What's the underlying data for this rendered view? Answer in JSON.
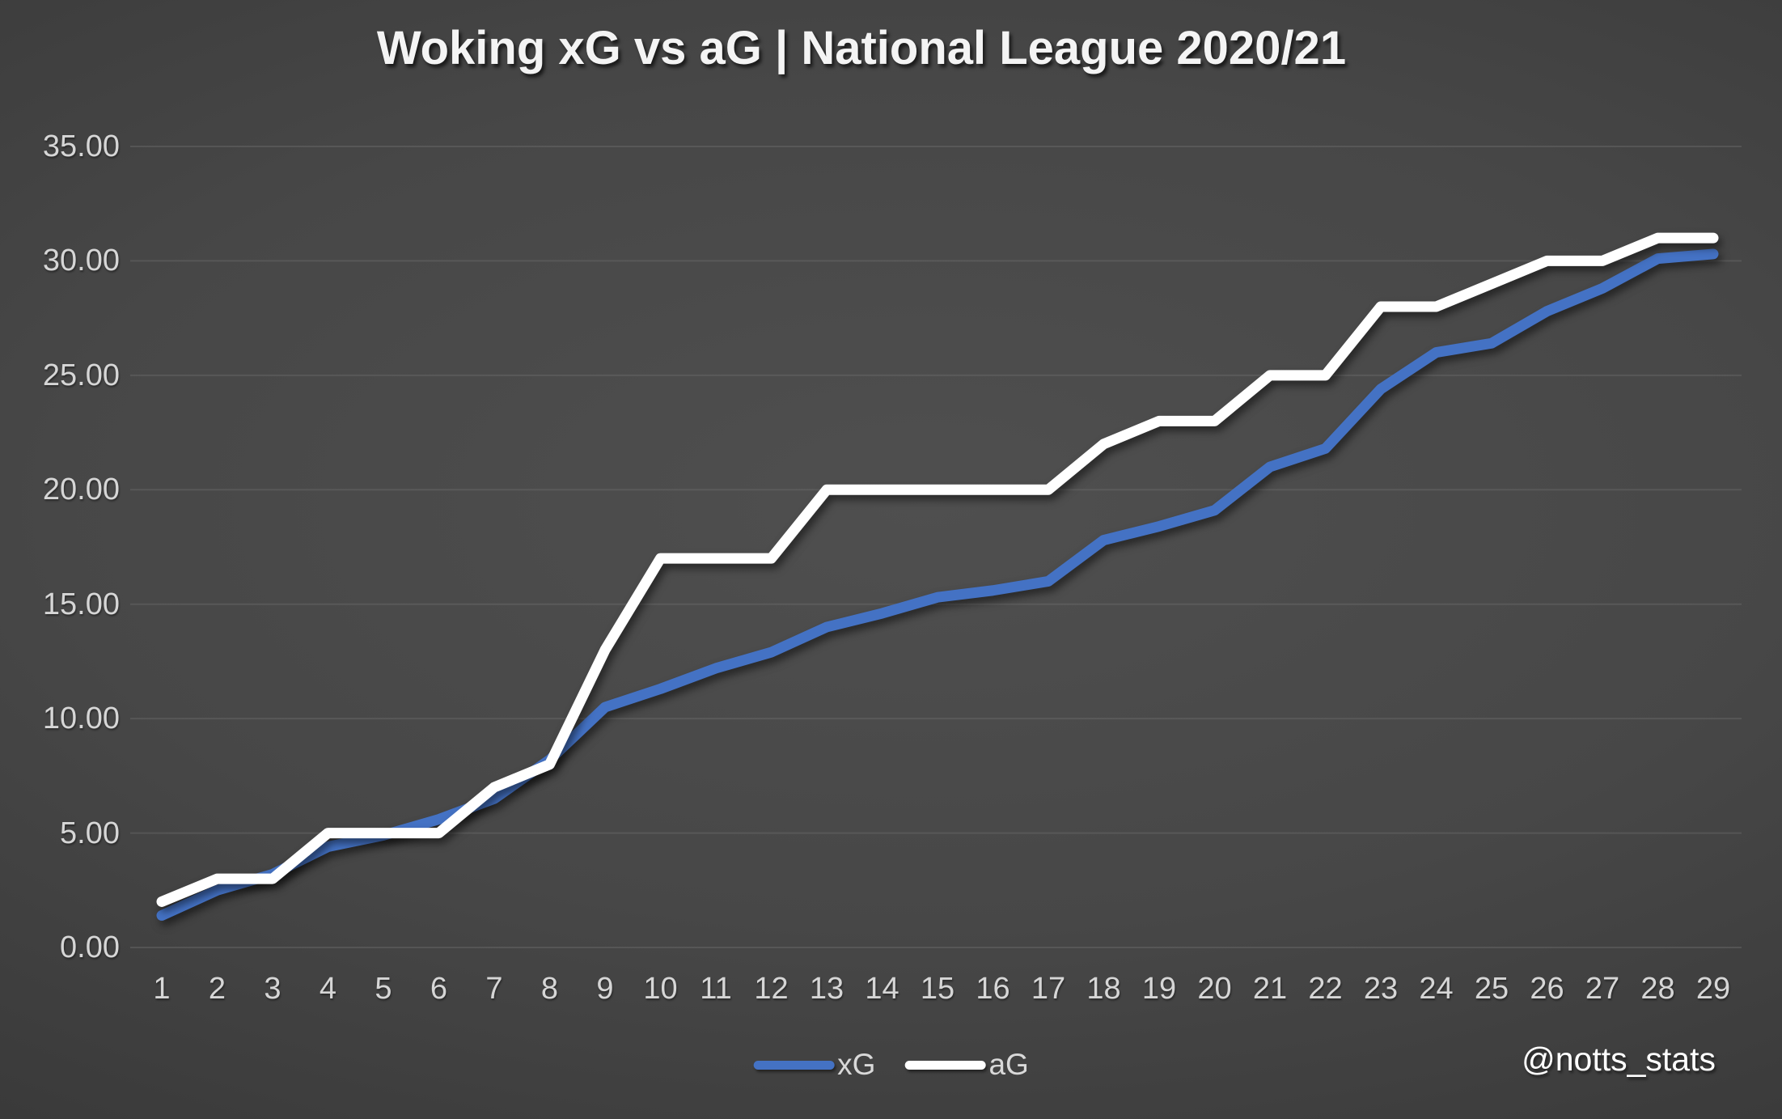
{
  "title": "Woking xG vs aG | National League 2020/21",
  "watermark": "@notts_stats",
  "colors": {
    "background_center": "#4d4d4d",
    "background_edge": "#262626",
    "gridline": "#707070",
    "axis_text": "#d6d6d6",
    "xg_blue": "#4472C4",
    "ag_white": "#ffffff"
  },
  "chart_data": {
    "type": "line",
    "title": "Woking xG vs aG | National League 2020/21",
    "xlabel": "",
    "ylabel": "",
    "categories": [
      1,
      2,
      3,
      4,
      5,
      6,
      7,
      8,
      9,
      10,
      11,
      12,
      13,
      14,
      15,
      16,
      17,
      18,
      19,
      20,
      21,
      22,
      23,
      24,
      25,
      26,
      27,
      28,
      29
    ],
    "series": [
      {
        "name": "xG",
        "color": "#4472C4",
        "values": [
          1.4,
          2.5,
          3.2,
          4.4,
          4.9,
          5.6,
          6.5,
          8.2,
          10.5,
          11.3,
          12.2,
          12.9,
          14.0,
          14.6,
          15.3,
          15.6,
          16.0,
          17.8,
          18.4,
          19.1,
          21.0,
          21.8,
          24.4,
          26.0,
          26.4,
          27.8,
          28.8,
          30.1,
          30.3
        ]
      },
      {
        "name": "aG",
        "color": "#ffffff",
        "values": [
          2,
          3,
          3,
          5,
          5,
          5,
          7,
          8,
          13,
          17,
          17,
          17,
          20,
          20,
          20,
          20,
          20,
          22,
          23,
          23,
          25,
          25,
          28,
          28,
          29,
          30,
          30,
          31,
          31
        ]
      }
    ],
    "ylim": [
      0,
      35
    ],
    "yticks": [
      35,
      30,
      25,
      20,
      15,
      10,
      5,
      0
    ],
    "ytick_labels": [
      "35.00",
      "30.00",
      "25.00",
      "20.00",
      "15.00",
      "10.00",
      "5.00",
      "0.00"
    ],
    "grid": true,
    "legend_position": "bottom-center"
  }
}
